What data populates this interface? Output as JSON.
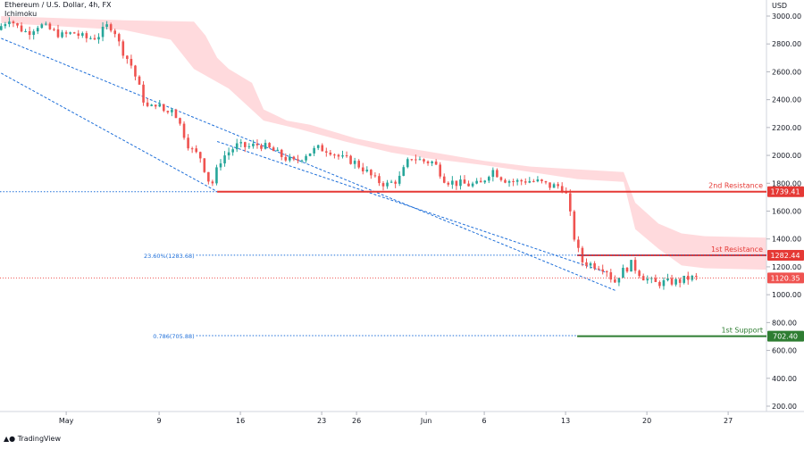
{
  "header": {
    "symbol_line": "Ethereum / U.S. Dollar, 4h, FX",
    "indicator": "Ichimoku"
  },
  "footer": {
    "brand": "TradingView"
  },
  "colors": {
    "up": "#26a69a",
    "down": "#ef5350",
    "cloud": "#ffcdd2",
    "resistance": "#e53935",
    "support": "#2e7d32",
    "trend": "#1e6fd9",
    "last_price": "#ef5350"
  },
  "chart_data": {
    "type": "candlestick",
    "title": "",
    "xlabel": "",
    "ylabel": "USD",
    "ylim": [
      150,
      3100
    ],
    "y_ticks": [
      200,
      400,
      600,
      800,
      1000,
      1200,
      1400,
      1600,
      1800,
      2000,
      2200,
      2400,
      2600,
      2800,
      3000
    ],
    "y_tick_labels": [
      "200.00",
      "400.00",
      "600.00",
      "800.00",
      "1000.00",
      "1200.00",
      "1400.00",
      "1600.00",
      "1800.00",
      "2000.00",
      "2200.00",
      "2400.00",
      "2600.00",
      "2800.00",
      "3000.00"
    ],
    "x_ticks": [
      {
        "day": 0,
        "label": "May"
      },
      {
        "day": 8,
        "label": "9"
      },
      {
        "day": 15,
        "label": "16"
      },
      {
        "day": 22,
        "label": "23"
      },
      {
        "day": 25,
        "label": "26"
      },
      {
        "day": 31,
        "label": "Jun"
      },
      {
        "day": 36,
        "label": "6"
      },
      {
        "day": 43,
        "label": "13"
      },
      {
        "day": 50,
        "label": "20"
      },
      {
        "day": 57,
        "label": "27"
      }
    ],
    "x_range_days": [
      -5.7,
      60.3
    ],
    "anchors": [
      [
        -5.6,
        2900
      ],
      [
        -4.5,
        2990
      ],
      [
        -4.0,
        2930
      ],
      [
        -3,
        2880
      ],
      [
        -2,
        2940
      ],
      [
        -1,
        2900
      ],
      [
        0,
        2860
      ],
      [
        1,
        2880
      ],
      [
        2,
        2840
      ],
      [
        3,
        2850
      ],
      [
        4,
        2940
      ],
      [
        4.5,
        2900
      ],
      [
        5,
        2780
      ],
      [
        6,
        2640
      ],
      [
        7,
        2400
      ],
      [
        7.5,
        2320
      ],
      [
        8,
        2380
      ],
      [
        9,
        2300
      ],
      [
        9.5,
        2350
      ],
      [
        10,
        2250
      ],
      [
        11,
        2050
      ],
      [
        12,
        1980
      ],
      [
        12.5,
        1830
      ],
      [
        13,
        1800
      ],
      [
        13.5,
        1950
      ],
      [
        14,
        2000
      ],
      [
        15,
        2070
      ],
      [
        16,
        2060
      ],
      [
        17,
        2080
      ],
      [
        18,
        2040
      ],
      [
        19,
        1990
      ],
      [
        20,
        1950
      ],
      [
        21,
        2010
      ],
      [
        22,
        2050
      ],
      [
        23,
        2040
      ],
      [
        24,
        1980
      ],
      [
        25,
        1960
      ],
      [
        26,
        1900
      ],
      [
        27,
        1820
      ],
      [
        28,
        1790
      ],
      [
        29,
        1830
      ],
      [
        30,
        1990
      ],
      [
        31,
        1960
      ],
      [
        32,
        1950
      ],
      [
        33,
        1820
      ],
      [
        34,
        1800
      ],
      [
        35,
        1790
      ],
      [
        36,
        1790
      ],
      [
        37,
        1900
      ],
      [
        38,
        1830
      ],
      [
        39,
        1810
      ],
      [
        40,
        1820
      ],
      [
        41,
        1810
      ],
      [
        42,
        1780
      ],
      [
        43,
        1780
      ],
      [
        43.5,
        1700
      ],
      [
        44,
        1440
      ],
      [
        44.7,
        1240
      ],
      [
        45.5,
        1220
      ],
      [
        46.5,
        1200
      ],
      [
        47,
        1170
      ],
      [
        47.5,
        1080
      ],
      [
        48,
        1150
      ],
      [
        49,
        1220
      ],
      [
        50,
        1130
      ],
      [
        51,
        1080
      ],
      [
        52,
        1090
      ],
      [
        53,
        1095
      ],
      [
        54,
        1120
      ],
      [
        54.6,
        1120
      ]
    ],
    "cloud": {
      "top": [
        [
          -5.6,
          3000
        ],
        [
          5,
          2970
        ],
        [
          11,
          2960
        ],
        [
          12,
          2860
        ],
        [
          13,
          2700
        ],
        [
          14,
          2620
        ],
        [
          16,
          2520
        ],
        [
          17,
          2330
        ],
        [
          19,
          2250
        ],
        [
          21,
          2220
        ],
        [
          25,
          2120
        ],
        [
          28,
          2070
        ],
        [
          31,
          2030
        ],
        [
          36,
          1960
        ],
        [
          40,
          1920
        ],
        [
          44,
          1900
        ],
        [
          46,
          1890
        ],
        [
          48,
          1880
        ],
        [
          49,
          1660
        ],
        [
          51,
          1510
        ],
        [
          53,
          1440
        ],
        [
          55,
          1420
        ],
        [
          60.3,
          1410
        ]
      ],
      "bottom": [
        [
          -5.6,
          2950
        ],
        [
          5,
          2900
        ],
        [
          9,
          2830
        ],
        [
          11,
          2620
        ],
        [
          14,
          2480
        ],
        [
          17,
          2250
        ],
        [
          20,
          2190
        ],
        [
          24,
          2100
        ],
        [
          28,
          2020
        ],
        [
          31,
          1980
        ],
        [
          36,
          1930
        ],
        [
          40,
          1880
        ],
        [
          44,
          1830
        ],
        [
          46,
          1820
        ],
        [
          48,
          1810
        ],
        [
          49,
          1470
        ],
        [
          51,
          1330
        ],
        [
          53,
          1210
        ],
        [
          55,
          1190
        ],
        [
          60.3,
          1180
        ]
      ]
    },
    "levels": [
      {
        "name": "2nd Resistance",
        "value": 1739.41,
        "label": "1739.41"
      },
      {
        "name": "1st Resistance",
        "value": 1282.44,
        "label": "1282.44"
      },
      {
        "name": "1st Support",
        "value": 702.4,
        "label": "702.40"
      }
    ],
    "last_price": {
      "value": 1120.35,
      "label": "1120.35"
    },
    "fib_levels": [
      {
        "label": "23.60%(1283.68)",
        "value": 1283.68
      },
      {
        "label": "0.786(705.88)",
        "value": 705.88
      }
    ],
    "trend_lines": [
      {
        "from": [
          -5.6,
          2840
        ],
        "to": [
          47.3,
          1030
        ]
      },
      {
        "from": [
          13,
          2100
        ],
        "to": [
          46.5,
          1160
        ]
      },
      {
        "from": [
          -5.6,
          2590
        ],
        "to": [
          13,
          1740
        ]
      }
    ]
  }
}
